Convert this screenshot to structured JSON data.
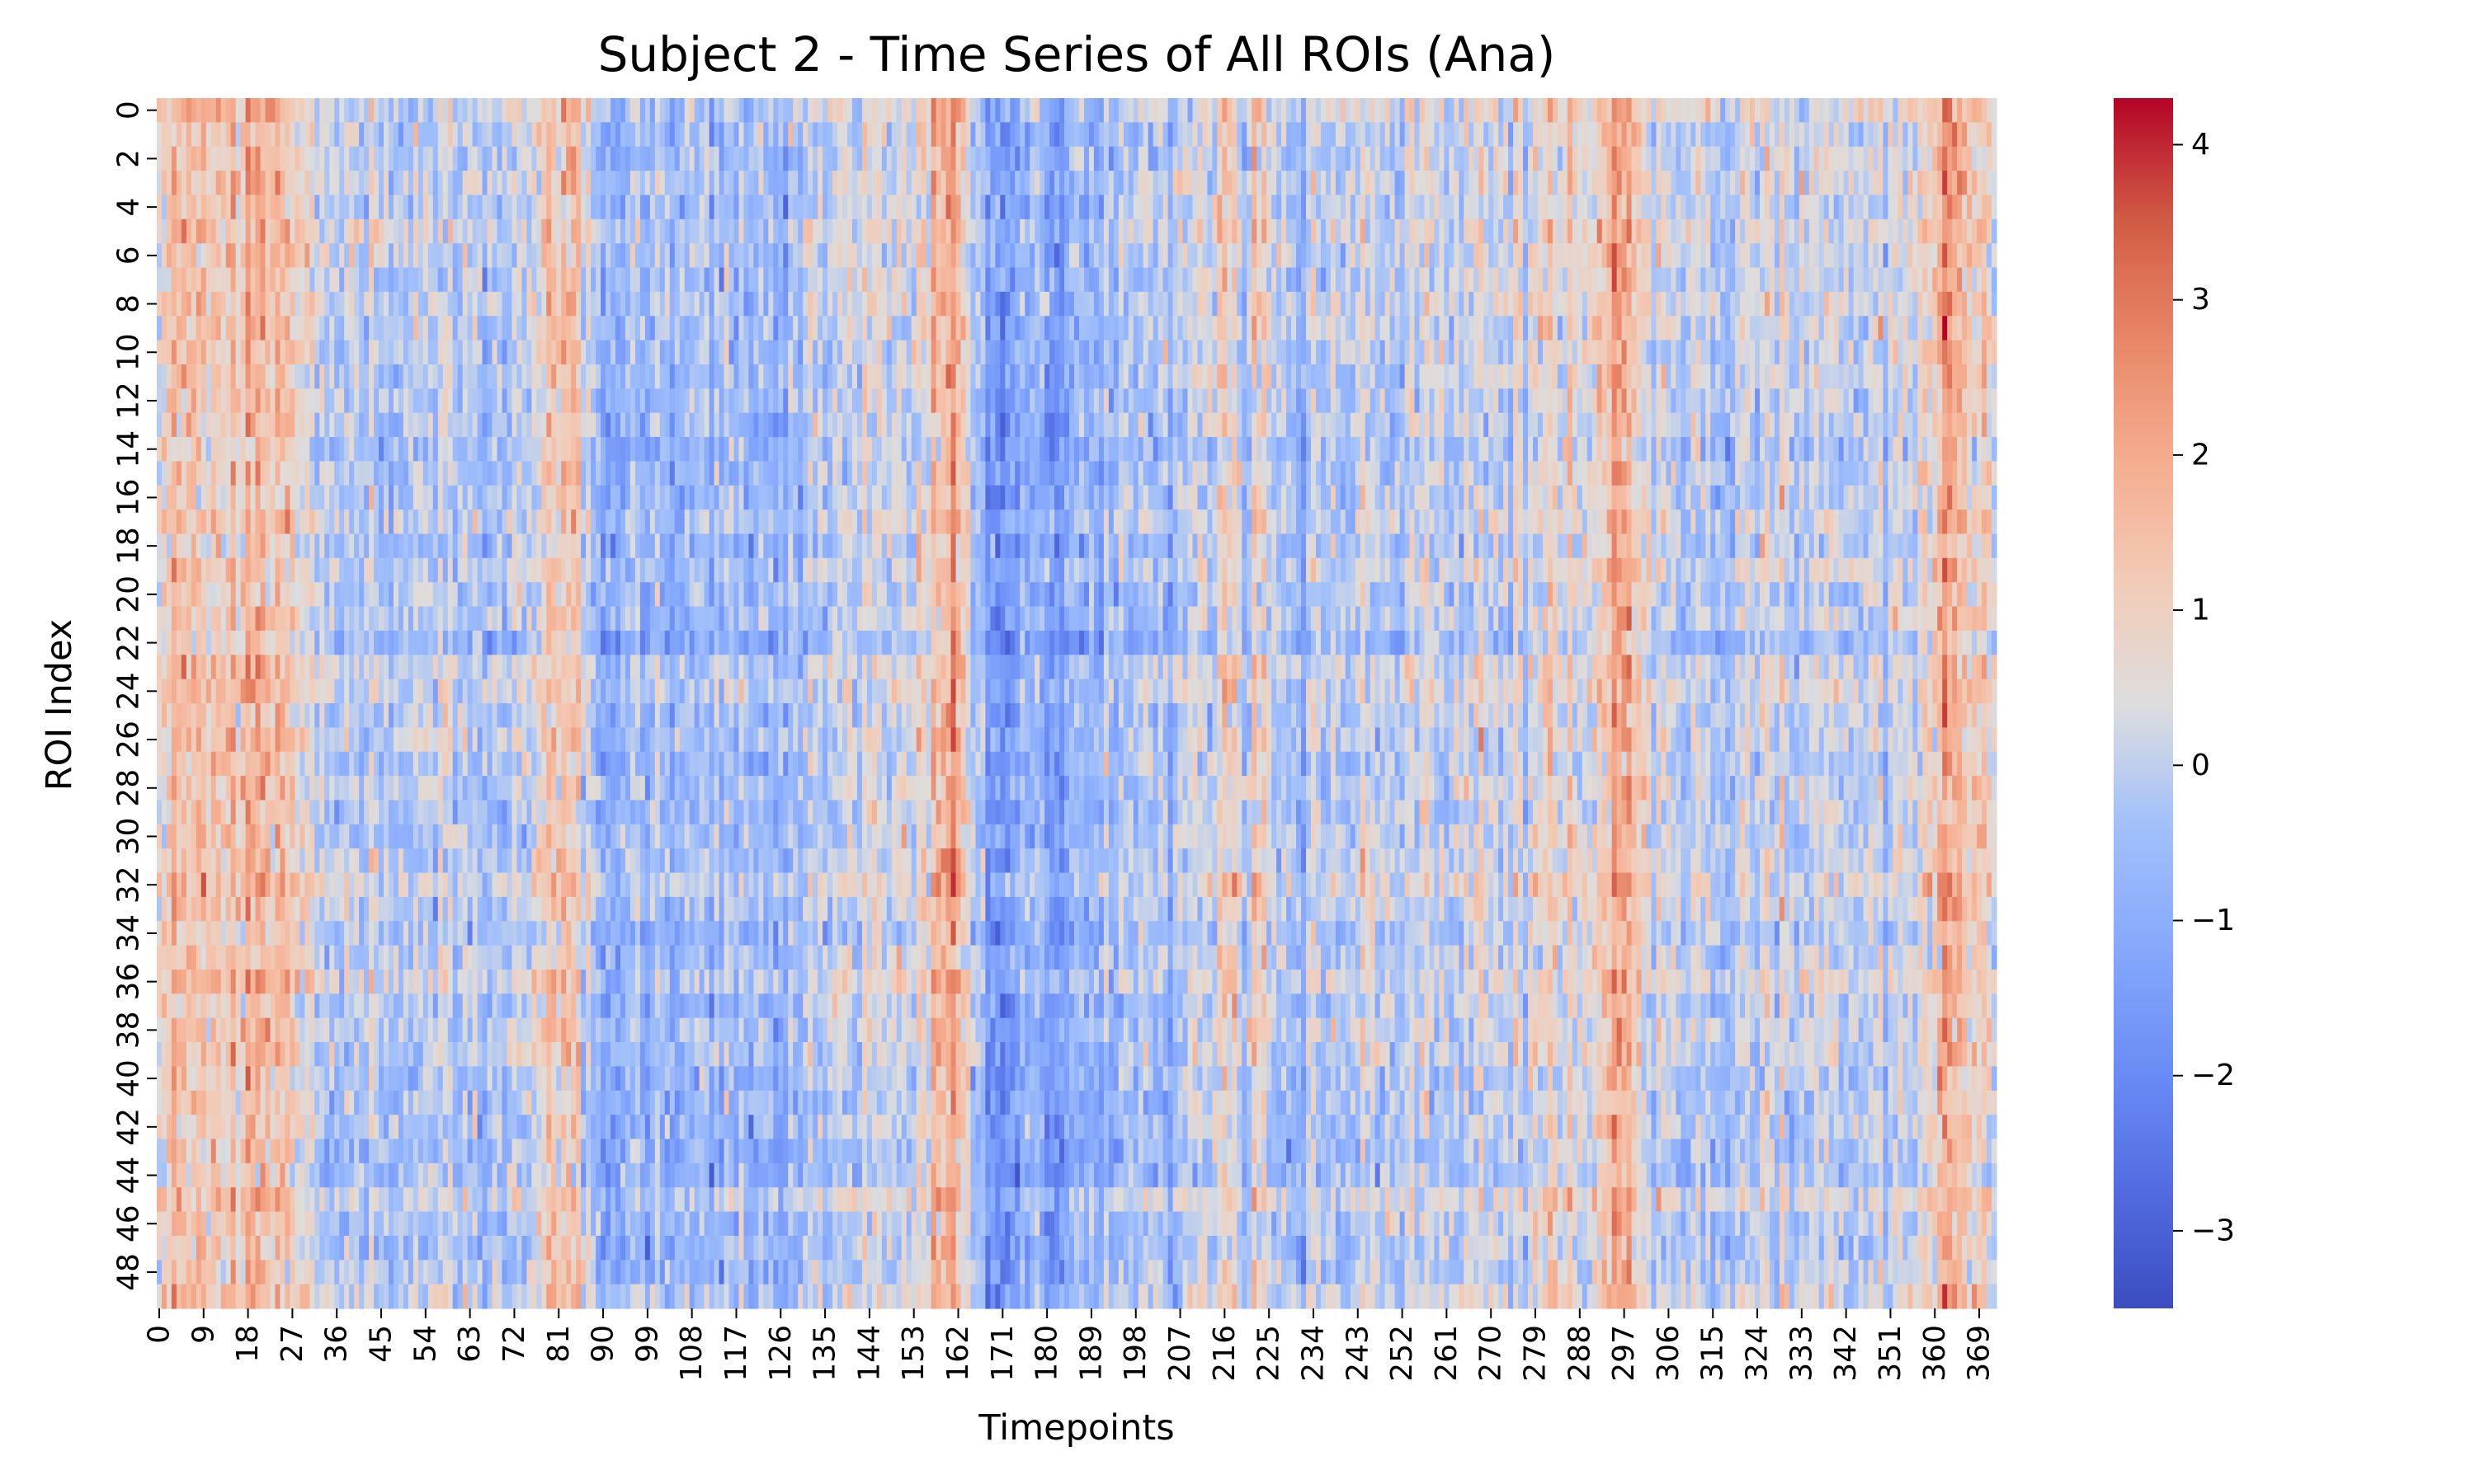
{
  "chart_data": {
    "type": "heatmap",
    "title": "Subject 2 - Time Series of All ROIs (Ana)",
    "xlabel": "Timepoints",
    "ylabel": "ROI Index",
    "n_rows": 50,
    "n_cols": 373,
    "x_tick_labels": [
      "0",
      "9",
      "18",
      "27",
      "36",
      "45",
      "54",
      "63",
      "72",
      "81",
      "90",
      "99",
      "108",
      "117",
      "126",
      "135",
      "144",
      "153",
      "162",
      "171",
      "180",
      "189",
      "198",
      "207",
      "216",
      "225",
      "234",
      "243",
      "252",
      "261",
      "270",
      "279",
      "288",
      "297",
      "306",
      "315",
      "324",
      "333",
      "342",
      "351",
      "360",
      "369"
    ],
    "y_tick_labels": [
      "0",
      "2",
      "4",
      "6",
      "8",
      "10",
      "12",
      "14",
      "16",
      "18",
      "20",
      "22",
      "24",
      "26",
      "28",
      "30",
      "32",
      "34",
      "36",
      "38",
      "40",
      "42",
      "44",
      "46",
      "48"
    ],
    "colormap": "coolwarm",
    "value_range": [
      -3.5,
      4.3
    ],
    "colorbar_ticks": [
      "4",
      "3",
      "2",
      "1",
      "0",
      "−1",
      "−2",
      "−3"
    ],
    "colorbar_tick_values": [
      4,
      3,
      2,
      1,
      0,
      -1,
      -2,
      -3
    ],
    "column_profile": [
      {
        "t": 0,
        "mean": 0.6
      },
      {
        "t": 3,
        "mean": 1.3
      },
      {
        "t": 12,
        "mean": 1.0
      },
      {
        "t": 19,
        "mean": 1.6
      },
      {
        "t": 22,
        "mean": 1.2
      },
      {
        "t": 25,
        "mean": 2.0
      },
      {
        "t": 28,
        "mean": 0.9
      },
      {
        "t": 34,
        "mean": 0.2
      },
      {
        "t": 42,
        "mean": -0.2
      },
      {
        "t": 50,
        "mean": -0.1
      },
      {
        "t": 58,
        "mean": 0.1
      },
      {
        "t": 66,
        "mean": -0.3
      },
      {
        "t": 74,
        "mean": 0.2
      },
      {
        "t": 80,
        "mean": 1.1
      },
      {
        "t": 83,
        "mean": 1.7
      },
      {
        "t": 86,
        "mean": 0.5
      },
      {
        "t": 90,
        "mean": -0.9
      },
      {
        "t": 96,
        "mean": -0.4
      },
      {
        "t": 104,
        "mean": -0.7
      },
      {
        "t": 112,
        "mean": -0.3
      },
      {
        "t": 120,
        "mean": -0.6
      },
      {
        "t": 128,
        "mean": -0.4
      },
      {
        "t": 136,
        "mean": 0.0
      },
      {
        "t": 144,
        "mean": 0.3
      },
      {
        "t": 152,
        "mean": 0.4
      },
      {
        "t": 158,
        "mean": 1.3
      },
      {
        "t": 161,
        "mean": 2.1
      },
      {
        "t": 164,
        "mean": 0.4
      },
      {
        "t": 168,
        "mean": -1.4
      },
      {
        "t": 176,
        "mean": -1.1
      },
      {
        "t": 184,
        "mean": -0.9
      },
      {
        "t": 192,
        "mean": -0.5
      },
      {
        "t": 200,
        "mean": -0.2
      },
      {
        "t": 208,
        "mean": -0.1
      },
      {
        "t": 215,
        "mean": 0.3
      },
      {
        "t": 218,
        "mean": 1.2
      },
      {
        "t": 220,
        "mean": -0.8
      },
      {
        "t": 223,
        "mean": 1.0
      },
      {
        "t": 228,
        "mean": -0.2
      },
      {
        "t": 236,
        "mean": -0.3
      },
      {
        "t": 244,
        "mean": 0.0
      },
      {
        "t": 252,
        "mean": 0.1
      },
      {
        "t": 260,
        "mean": -0.1
      },
      {
        "t": 268,
        "mean": 0.2
      },
      {
        "t": 276,
        "mean": 0.4
      },
      {
        "t": 284,
        "mean": 0.6
      },
      {
        "t": 292,
        "mean": 1.0
      },
      {
        "t": 295,
        "mean": 1.8
      },
      {
        "t": 298,
        "mean": 2.0
      },
      {
        "t": 302,
        "mean": 0.4
      },
      {
        "t": 310,
        "mean": -0.3
      },
      {
        "t": 318,
        "mean": -0.2
      },
      {
        "t": 326,
        "mean": 0.2
      },
      {
        "t": 334,
        "mean": 0.0
      },
      {
        "t": 342,
        "mean": 0.1
      },
      {
        "t": 350,
        "mean": 0.3
      },
      {
        "t": 356,
        "mean": 0.7
      },
      {
        "t": 361,
        "mean": 1.4
      },
      {
        "t": 364,
        "mean": 1.9
      },
      {
        "t": 368,
        "mean": 1.1
      },
      {
        "t": 372,
        "mean": 0.6
      }
    ]
  }
}
